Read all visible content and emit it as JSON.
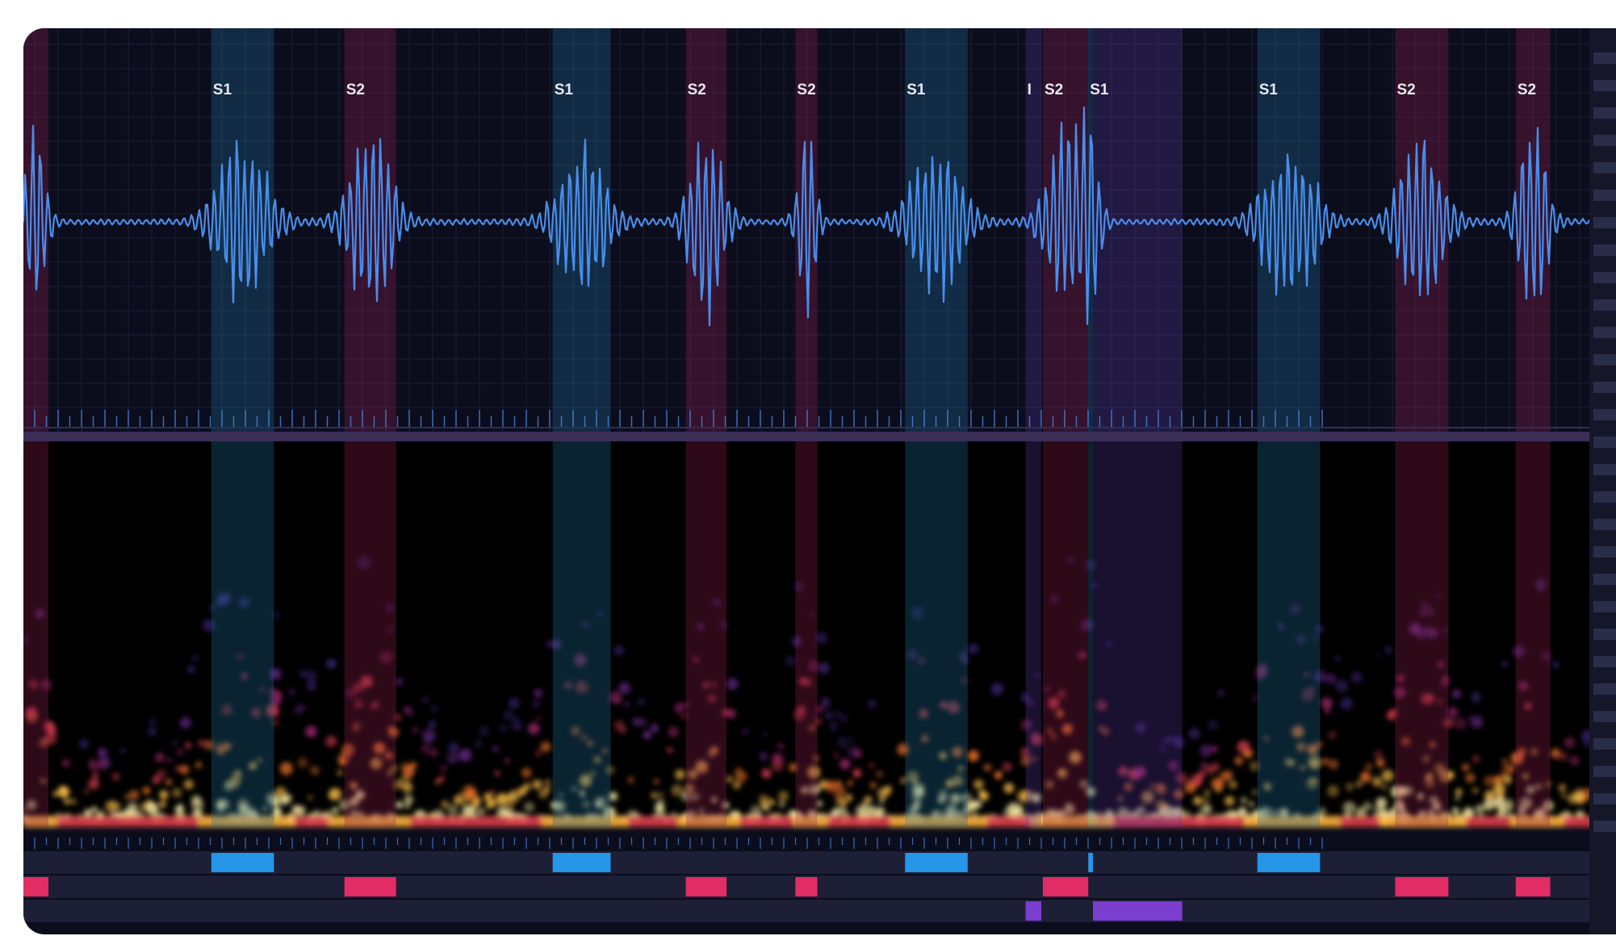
{
  "panel": {
    "colors": {
      "background": "#0c0d1c",
      "waveform": "#4a8eea",
      "grid": "#1a2038",
      "s1_band": "#1f6e97",
      "s2_band": "#8e1f4f",
      "murmur_band": "#5e3aa8",
      "s1_marker": "#2596e8",
      "s2_marker": "#e22c64",
      "murmur_marker": "#7b3fd0",
      "track": "#1d1f37",
      "spectrogram_bg": "#000000"
    },
    "segments": [
      {
        "type": "S2",
        "label": "",
        "start": 0.0,
        "end": 0.016
      },
      {
        "type": "S1",
        "label": "S1",
        "start": 0.12,
        "end": 0.16
      },
      {
        "type": "S2",
        "label": "S2",
        "start": 0.205,
        "end": 0.238
      },
      {
        "type": "S1",
        "label": "S1",
        "start": 0.338,
        "end": 0.375
      },
      {
        "type": "S2",
        "label": "S2",
        "start": 0.423,
        "end": 0.449
      },
      {
        "type": "S2",
        "label": "S2",
        "start": 0.493,
        "end": 0.507
      },
      {
        "type": "S1",
        "label": "S1",
        "start": 0.563,
        "end": 0.603
      },
      {
        "type": "M",
        "label": "I",
        "start": 0.64,
        "end": 0.65
      },
      {
        "type": "S2",
        "label": "S2",
        "start": 0.651,
        "end": 0.68
      },
      {
        "type": "S1",
        "label": "S1",
        "start": 0.68,
        "end": 0.683
      },
      {
        "type": "M",
        "label": "",
        "start": 0.683,
        "end": 0.74
      },
      {
        "type": "S1",
        "label": "S1",
        "start": 0.788,
        "end": 0.828
      },
      {
        "type": "S2",
        "label": "S2",
        "start": 0.876,
        "end": 0.91
      },
      {
        "type": "S2",
        "label": "S2",
        "start": 0.953,
        "end": 0.975
      }
    ]
  }
}
